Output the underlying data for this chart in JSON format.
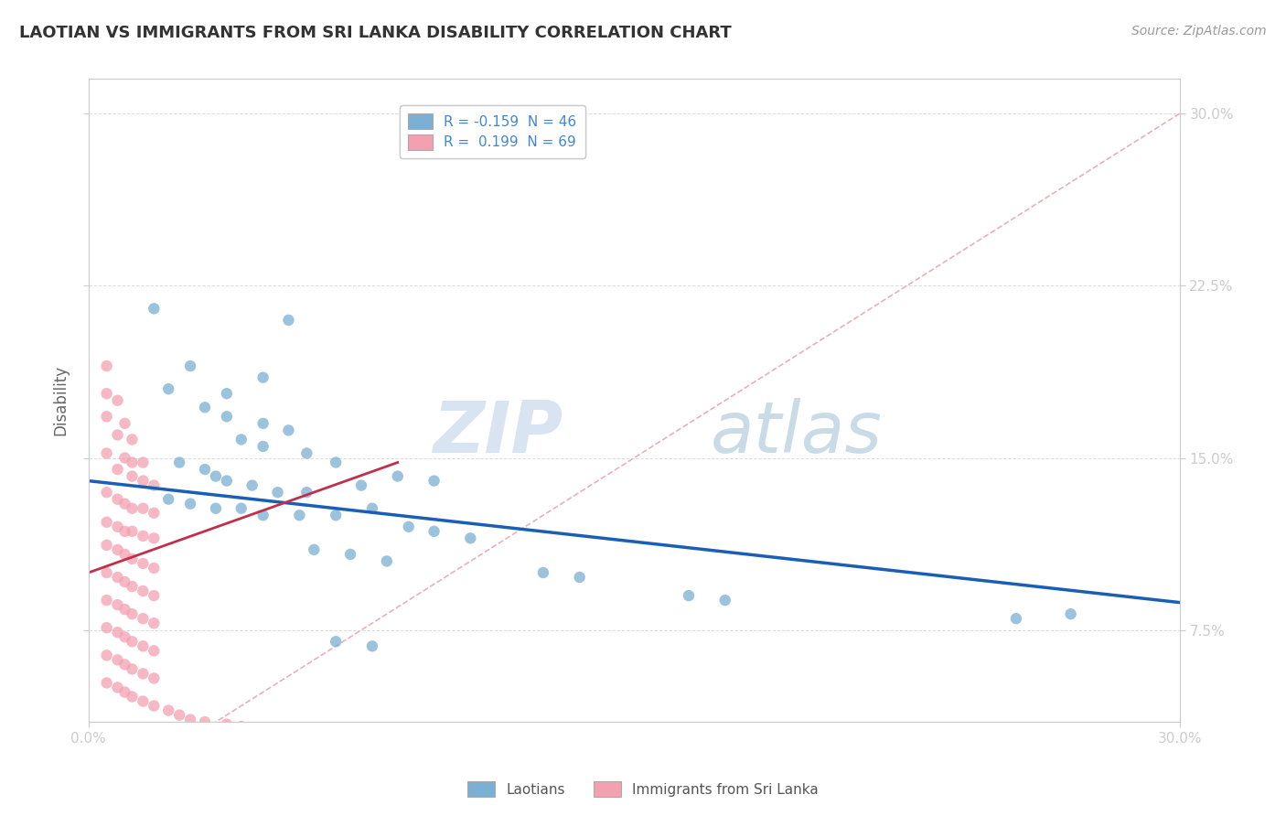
{
  "title": "LAOTIAN VS IMMIGRANTS FROM SRI LANKA DISABILITY CORRELATION CHART",
  "source": "Source: ZipAtlas.com",
  "ylabel": "Disability",
  "watermark_zip": "ZIP",
  "watermark_atlas": "atlas",
  "legend_entries": [
    {
      "label": "R = -0.159  N = 46",
      "color": "#a8c4e0"
    },
    {
      "label": "R =  0.199  N = 69",
      "color": "#f4a0b0"
    }
  ],
  "legend_names": [
    "Laotians",
    "Immigrants from Sri Lanka"
  ],
  "xlim": [
    0.0,
    0.3
  ],
  "ylim": [
    0.035,
    0.315
  ],
  "yticks": [
    0.075,
    0.15,
    0.225,
    0.3
  ],
  "ytick_labels": [
    "7.5%",
    "15.0%",
    "22.5%",
    "30.0%"
  ],
  "xtick_labels_show": [
    "0.0%",
    "30.0%"
  ],
  "xticks_show": [
    0.0,
    0.3
  ],
  "blue_scatter": [
    [
      0.018,
      0.215
    ],
    [
      0.055,
      0.21
    ],
    [
      0.028,
      0.19
    ],
    [
      0.048,
      0.185
    ],
    [
      0.022,
      0.18
    ],
    [
      0.038,
      0.178
    ],
    [
      0.032,
      0.172
    ],
    [
      0.038,
      0.168
    ],
    [
      0.048,
      0.165
    ],
    [
      0.055,
      0.162
    ],
    [
      0.042,
      0.158
    ],
    [
      0.048,
      0.155
    ],
    [
      0.06,
      0.152
    ],
    [
      0.068,
      0.148
    ],
    [
      0.025,
      0.148
    ],
    [
      0.032,
      0.145
    ],
    [
      0.035,
      0.142
    ],
    [
      0.038,
      0.14
    ],
    [
      0.045,
      0.138
    ],
    [
      0.052,
      0.135
    ],
    [
      0.06,
      0.135
    ],
    [
      0.075,
      0.138
    ],
    [
      0.085,
      0.142
    ],
    [
      0.095,
      0.14
    ],
    [
      0.022,
      0.132
    ],
    [
      0.028,
      0.13
    ],
    [
      0.035,
      0.128
    ],
    [
      0.042,
      0.128
    ],
    [
      0.048,
      0.125
    ],
    [
      0.058,
      0.125
    ],
    [
      0.068,
      0.125
    ],
    [
      0.078,
      0.128
    ],
    [
      0.088,
      0.12
    ],
    [
      0.095,
      0.118
    ],
    [
      0.105,
      0.115
    ],
    [
      0.062,
      0.11
    ],
    [
      0.072,
      0.108
    ],
    [
      0.082,
      0.105
    ],
    [
      0.125,
      0.1
    ],
    [
      0.135,
      0.098
    ],
    [
      0.165,
      0.09
    ],
    [
      0.175,
      0.088
    ],
    [
      0.255,
      0.08
    ],
    [
      0.27,
      0.082
    ],
    [
      0.068,
      0.07
    ],
    [
      0.078,
      0.068
    ]
  ],
  "pink_scatter": [
    [
      0.005,
      0.19
    ],
    [
      0.005,
      0.178
    ],
    [
      0.008,
      0.175
    ],
    [
      0.005,
      0.168
    ],
    [
      0.01,
      0.165
    ],
    [
      0.008,
      0.16
    ],
    [
      0.012,
      0.158
    ],
    [
      0.005,
      0.152
    ],
    [
      0.01,
      0.15
    ],
    [
      0.012,
      0.148
    ],
    [
      0.015,
      0.148
    ],
    [
      0.008,
      0.145
    ],
    [
      0.012,
      0.142
    ],
    [
      0.015,
      0.14
    ],
    [
      0.018,
      0.138
    ],
    [
      0.005,
      0.135
    ],
    [
      0.008,
      0.132
    ],
    [
      0.01,
      0.13
    ],
    [
      0.012,
      0.128
    ],
    [
      0.015,
      0.128
    ],
    [
      0.018,
      0.126
    ],
    [
      0.005,
      0.122
    ],
    [
      0.008,
      0.12
    ],
    [
      0.01,
      0.118
    ],
    [
      0.012,
      0.118
    ],
    [
      0.015,
      0.116
    ],
    [
      0.018,
      0.115
    ],
    [
      0.005,
      0.112
    ],
    [
      0.008,
      0.11
    ],
    [
      0.01,
      0.108
    ],
    [
      0.012,
      0.106
    ],
    [
      0.015,
      0.104
    ],
    [
      0.018,
      0.102
    ],
    [
      0.005,
      0.1
    ],
    [
      0.008,
      0.098
    ],
    [
      0.01,
      0.096
    ],
    [
      0.012,
      0.094
    ],
    [
      0.015,
      0.092
    ],
    [
      0.018,
      0.09
    ],
    [
      0.005,
      0.088
    ],
    [
      0.008,
      0.086
    ],
    [
      0.01,
      0.084
    ],
    [
      0.012,
      0.082
    ],
    [
      0.015,
      0.08
    ],
    [
      0.018,
      0.078
    ],
    [
      0.005,
      0.076
    ],
    [
      0.008,
      0.074
    ],
    [
      0.01,
      0.072
    ],
    [
      0.012,
      0.07
    ],
    [
      0.015,
      0.068
    ],
    [
      0.018,
      0.066
    ],
    [
      0.005,
      0.064
    ],
    [
      0.008,
      0.062
    ],
    [
      0.01,
      0.06
    ],
    [
      0.012,
      0.058
    ],
    [
      0.015,
      0.056
    ],
    [
      0.018,
      0.054
    ],
    [
      0.005,
      0.052
    ],
    [
      0.008,
      0.05
    ],
    [
      0.01,
      0.048
    ],
    [
      0.012,
      0.046
    ],
    [
      0.015,
      0.044
    ],
    [
      0.018,
      0.042
    ],
    [
      0.022,
      0.04
    ],
    [
      0.025,
      0.038
    ],
    [
      0.028,
      0.036
    ],
    [
      0.032,
      0.035
    ],
    [
      0.038,
      0.034
    ],
    [
      0.042,
      0.033
    ]
  ],
  "blue_line": {
    "x": [
      0.0,
      0.3
    ],
    "y": [
      0.14,
      0.087
    ]
  },
  "pink_line": {
    "x": [
      0.0,
      0.085
    ],
    "y": [
      0.1,
      0.148
    ]
  },
  "diagonal_line": {
    "x": [
      0.0,
      0.3
    ],
    "y": [
      0.0,
      0.3
    ]
  },
  "scatter_alpha": 0.75,
  "scatter_size": 80,
  "blue_color": "#7bafd4",
  "pink_color": "#f4a0b0",
  "blue_line_color": "#1a5fb4",
  "pink_line_color": "#c0304a",
  "diagonal_color": "#e8b0bc",
  "grid_color": "#d8d8d8",
  "title_color": "#333333",
  "axis_color": "#4488cc",
  "tick_color": "#cccccc",
  "background_color": "#ffffff"
}
